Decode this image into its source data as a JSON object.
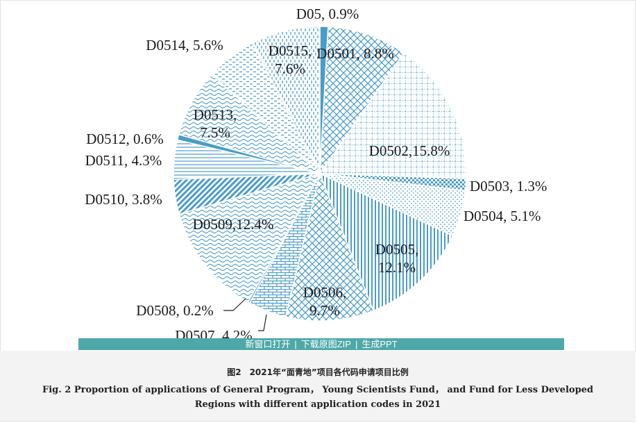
{
  "chart_data": {
    "type": "pie",
    "title": "",
    "start": "12 o'clock, clockwise",
    "fill_color": "#4a9cc8",
    "slices": [
      {
        "code": "D05",
        "value": 0.9,
        "label": "D05, 0.9%",
        "pattern": "solid"
      },
      {
        "code": "D0501",
        "value": 8.8,
        "label": "D0501, 8.8%",
        "pattern": "diagcross"
      },
      {
        "code": "D0502",
        "value": 15.8,
        "label": "D0502,15.8%",
        "pattern": "grid"
      },
      {
        "code": "D0503",
        "value": 1.3,
        "label": "D0503, 1.3%",
        "pattern": "checker"
      },
      {
        "code": "D0504",
        "value": 5.1,
        "label": "D0504, 5.1%",
        "pattern": "dots"
      },
      {
        "code": "D0505",
        "value": 12.1,
        "label_lines": [
          "D0505,",
          "12.1%"
        ],
        "pattern": "vlines"
      },
      {
        "code": "D0506",
        "value": 9.7,
        "label_lines": [
          "D0506,",
          "9.7%"
        ],
        "pattern": "diagcross"
      },
      {
        "code": "D0507",
        "value": 4.2,
        "label": "D0507, 4.2%",
        "pattern": "brick"
      },
      {
        "code": "D0508",
        "value": 0.2,
        "label": "D0508, 0.2%",
        "pattern": "solid"
      },
      {
        "code": "D0509",
        "value": 12.4,
        "label": "D0509,12.4%",
        "pattern": "waves"
      },
      {
        "code": "D0510",
        "value": 3.8,
        "label": "D0510, 3.8%",
        "pattern": "diag"
      },
      {
        "code": "D0511",
        "value": 4.3,
        "label": "D0511, 4.3%",
        "pattern": "hlines"
      },
      {
        "code": "D0512",
        "value": 0.6,
        "label": "D0512, 0.6%",
        "pattern": "solid"
      },
      {
        "code": "D0513",
        "value": 7.5,
        "label_lines": [
          "D0513,",
          "7.5%"
        ],
        "pattern": "waves"
      },
      {
        "code": "D0514",
        "value": 5.6,
        "label": "D0514, 5.6%",
        "pattern": "dashes"
      },
      {
        "code": "D0515",
        "value": 7.6,
        "label_lines": [
          "D0515,",
          "7.6%"
        ],
        "pattern": "vdash"
      }
    ]
  },
  "toolbar": {
    "new_window": "新窗口打开",
    "download_zip": "下载原图ZIP",
    "generate_ppt": "生成PPT",
    "separator": "|"
  },
  "caption": {
    "cn": "图2　2021年“面青地”项目各代码申请项目比例",
    "en_line1": "Fig. 2   Proportion of applications of General Program，  Young Scientists Fund，  and Fund for Less Developed",
    "en_line2": "Regions with different application codes in 2021"
  }
}
